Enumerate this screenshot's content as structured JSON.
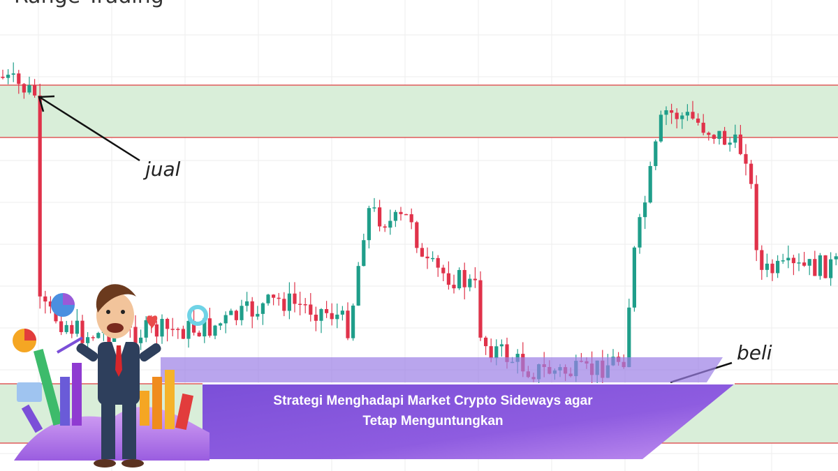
{
  "header": {
    "title": "Range Trading"
  },
  "annotations": {
    "sell": "jual",
    "buy": "beli"
  },
  "banner": {
    "title_line1": "Strategi Menghadapi Market Crypto Sideways agar",
    "title_line2": "Tetap Menguntungkan"
  }
}
